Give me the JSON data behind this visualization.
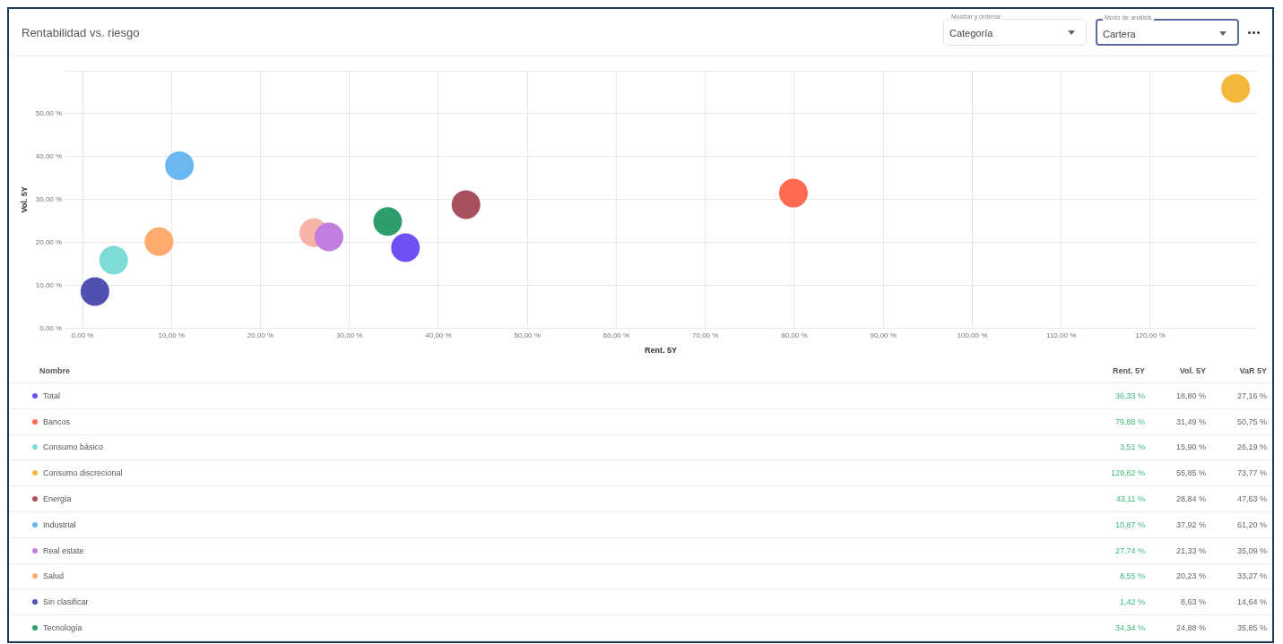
{
  "chart_data": [
    {
      "type": "scatter",
      "title": "Rentabilidad vs. riesgo",
      "xlabel": "Rent. 5Y",
      "ylabel": "Vol. 5Y",
      "annotations": [
        "Mostrar y ordenar",
        "Categoría",
        "Modo de análisis",
        "Cartera"
      ],
      "grid": true,
      "marker": "circle",
      "xlim": [
        -2,
        132
      ],
      "ylim": [
        0,
        60
      ],
      "xticks": [
        {
          "value": 0,
          "label": "0,00 %"
        },
        {
          "value": 10,
          "label": "10,00 %"
        },
        {
          "value": 20,
          "label": "20,00 %"
        },
        {
          "value": 30,
          "label": "30,00 %"
        },
        {
          "value": 40,
          "label": "40,00 %"
        },
        {
          "value": 50,
          "label": "50,00 %"
        },
        {
          "value": 60,
          "label": "60,00 %"
        },
        {
          "value": 70,
          "label": "70,00 %"
        },
        {
          "value": 80,
          "label": "80,00 %"
        },
        {
          "value": 90,
          "label": "90,00 %"
        },
        {
          "value": 100,
          "label": "100,00 %"
        },
        {
          "value": 110,
          "label": "110,00 %"
        },
        {
          "value": 120,
          "label": "120,00 %"
        }
      ],
      "yticks": [
        {
          "value": 0,
          "label": "0,00 %"
        },
        {
          "value": 10,
          "label": "10,00 %"
        },
        {
          "value": 20,
          "label": "20,00 %"
        },
        {
          "value": 30,
          "label": "30,00 %"
        },
        {
          "value": 40,
          "label": "40,00 %"
        },
        {
          "value": 50,
          "label": "50,00 %"
        },
        {
          "value": 60,
          "label": null
        }
      ],
      "series": [
        {
          "color": "#7050f5",
          "x": [
            36.3
          ],
          "values": [
            18.8
          ]
        },
        {
          "color": "#ff6a50",
          "x": [
            79.9
          ],
          "values": [
            31.5
          ]
        },
        {
          "color": "#7fdcd4",
          "x": [
            3.5
          ],
          "values": [
            15.9
          ]
        },
        {
          "color": "#f4b73a",
          "x": [
            129.6
          ],
          "values": [
            55.9
          ]
        },
        {
          "color": "#a8505e",
          "x": [
            43.1
          ],
          "values": [
            28.8
          ]
        },
        {
          "color": "#6ab8ef",
          "x": [
            10.9
          ],
          "values": [
            37.9
          ]
        },
        {
          "color": "#c07ee0",
          "x": [
            27.7
          ],
          "values": [
            21.3
          ]
        },
        {
          "color": "#ffab70",
          "x": [
            8.6
          ],
          "values": [
            20.2
          ]
        },
        {
          "color": "#5050b0",
          "x": [
            1.4
          ],
          "values": [
            8.6
          ]
        },
        {
          "color": "#2e9e6a",
          "x": [
            34.3
          ],
          "values": [
            24.9
          ]
        },
        {
          "color": "#f7b3a6",
          "x": [
            26.0
          ],
          "values": [
            22.3
          ]
        }
      ]
    },
    {
      "type": "other",
      "annotations": [
        "Nombre"
      ],
      "categories": [
        "Total",
        "Bancos",
        "Consumo básico",
        "Consumo discrecional",
        "Energía",
        "Industrial",
        "Real estate",
        "Salud",
        "Sin clasificar",
        "Tecnología"
      ],
      "colors": [
        "#7050f5",
        "#ff6a50",
        "#7fdcd4",
        "#f4b73a",
        "#a8505e",
        "#6ab8ef",
        "#c07ee0",
        "#ffab70",
        "#5050b0",
        "#2e9e6a"
      ],
      "series": [
        {
          "name": "Rent. 5Y",
          "values": [
            36.33,
            79.88,
            3.51,
            129.62,
            43.11,
            10.87,
            27.74,
            8.55,
            1.42,
            34.34
          ],
          "value_labels": [
            "36,33 %",
            "79,88 %",
            "3,51 %",
            "129,62 %",
            "43,11 %",
            "10,87 %",
            "27,74 %",
            "8,55 %",
            "1,42 %",
            "34,34 %"
          ]
        },
        {
          "name": "Vol. 5Y",
          "values": [
            18.8,
            31.49,
            15.9,
            55.85,
            28.84,
            37.92,
            21.33,
            20.23,
            8.63,
            24.88
          ],
          "value_labels": [
            "18,80 %",
            "31,49 %",
            "15,90 %",
            "55,85 %",
            "28,84 %",
            "37,92 %",
            "21,33 %",
            "20,23 %",
            "8,63 %",
            "24,88 %"
          ]
        },
        {
          "name": "VaR 5Y",
          "values": [
            27.16,
            50.75,
            26.19,
            73.77,
            47.63,
            61.2,
            35.09,
            33.27,
            14.64,
            35.85
          ],
          "value_labels": [
            "27,16 %",
            "50,75 %",
            "26,19 %",
            "73,77 %",
            "47,63 %",
            "61,20 %",
            "35,09 %",
            "33,27 %",
            "14,64 %",
            "35,85 %"
          ]
        }
      ]
    }
  ]
}
